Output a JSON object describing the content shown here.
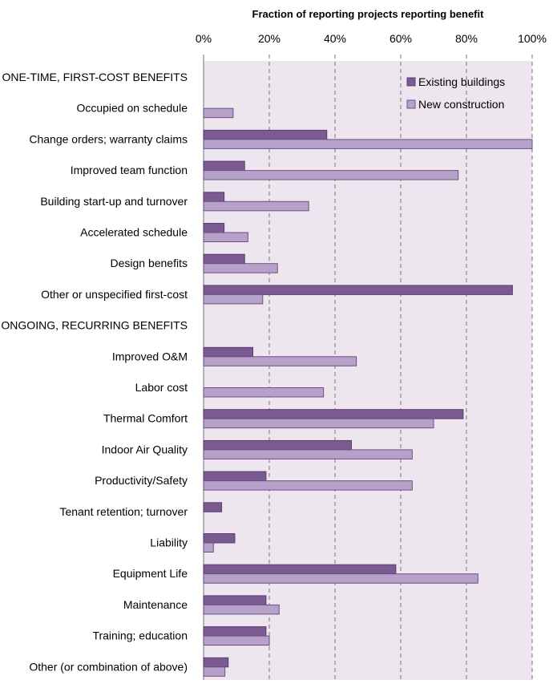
{
  "colors": {
    "plot_background": "#ede6ee",
    "existing_fill": "#7b5a91",
    "existing_stroke": "#5a3d70",
    "new_fill": "#b6a1c8",
    "new_stroke": "#6e4f88",
    "gridline": "#888888"
  },
  "chart_data": {
    "type": "bar",
    "orientation": "horizontal",
    "title": "Fraction of reporting projects reporting benefit",
    "x_tick_labels": [
      "0%",
      "20%",
      "40%",
      "60%",
      "80%",
      "100%"
    ],
    "xlim": [
      0,
      1
    ],
    "grid": "vertical dashed",
    "legend_position": "top-right",
    "categories": [
      "ONE-TIME, FIRST-COST BENEFITS",
      "Occupied on schedule",
      "Change orders; warranty claims",
      "Improved team function",
      "Building start-up and turnover",
      "Accelerated schedule",
      "Design benefits",
      "Other or unspecified first-cost",
      "ONGOING, RECURRING BENEFITS",
      "Improved O&M",
      "Labor cost",
      "Thermal Comfort",
      "Indoor Air Quality",
      "Productivity/Safety",
      "Tenant retention; turnover",
      "Liability",
      "Equipment Life",
      "Maintenance",
      "Training; education",
      "Other (or combination of above)"
    ],
    "series": [
      {
        "name": "Existing buildings",
        "values": [
          null,
          0,
          0.375,
          0.125,
          0.0625,
          0.0625,
          0.125,
          0.94,
          null,
          0.15,
          0,
          0.79,
          0.45,
          0.19,
          0.055,
          0.095,
          0.585,
          0.19,
          0.19,
          0.075
        ]
      },
      {
        "name": "New construction",
        "values": [
          null,
          0.09,
          1.0,
          0.775,
          0.32,
          0.135,
          0.225,
          0.18,
          null,
          0.465,
          0.365,
          0.7,
          0.635,
          0.635,
          0,
          0.03,
          0.835,
          0.23,
          0.2,
          0.065
        ]
      }
    ]
  }
}
